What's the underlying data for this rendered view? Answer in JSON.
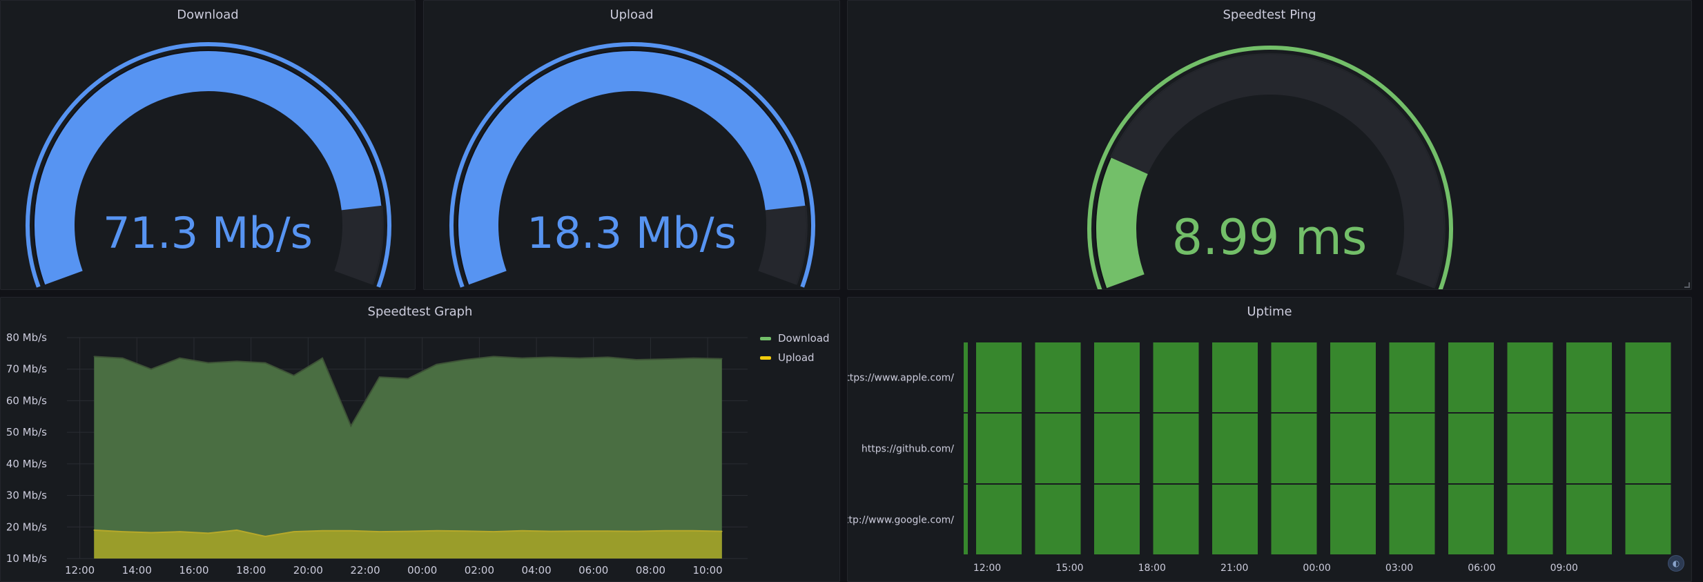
{
  "colors": {
    "blue": "#5794f2",
    "green": "#73bf69",
    "uptime_green": "#37872d",
    "yellow": "#f2cc0c",
    "track": "#25272d"
  },
  "gauges": [
    {
      "id": "download",
      "title": "Download",
      "value_text": "71.3 Mb/s",
      "fraction": 0.88,
      "color": "#5794f2"
    },
    {
      "id": "upload",
      "title": "Upload",
      "value_text": "18.3 Mb/s",
      "fraction": 0.88,
      "color": "#5794f2"
    },
    {
      "id": "ping",
      "title": "Speedtest Ping",
      "value_text": "8.99 ms",
      "fraction": 0.2,
      "color": "#73bf69"
    }
  ],
  "speedtest_graph": {
    "title": "Speedtest Graph",
    "legend": [
      {
        "name": "Download",
        "color": "#73bf69"
      },
      {
        "name": "Upload",
        "color": "#f2cc0c"
      }
    ]
  },
  "uptime": {
    "title": "Uptime",
    "rows": [
      "https://www.apple.com/",
      "https://github.com/",
      "http://www.google.com/"
    ],
    "x_ticks": [
      "12:00",
      "15:00",
      "18:00",
      "21:00",
      "00:00",
      "03:00",
      "06:00",
      "09:00"
    ]
  },
  "chart_data": {
    "type": "area",
    "title": "Speedtest Graph",
    "x_ticks": [
      "12:00",
      "14:00",
      "16:00",
      "18:00",
      "20:00",
      "22:00",
      "00:00",
      "02:00",
      "04:00",
      "06:00",
      "08:00",
      "10:00"
    ],
    "y_ticks": [
      "10 Mb/s",
      "20 Mb/s",
      "30 Mb/s",
      "40 Mb/s",
      "50 Mb/s",
      "60 Mb/s",
      "70 Mb/s",
      "80 Mb/s"
    ],
    "ylim": [
      10,
      80
    ],
    "x_hours": [
      12.5,
      13.5,
      14.5,
      15.5,
      16.5,
      17.5,
      18.5,
      19.5,
      20.5,
      21.5,
      22.5,
      23.5,
      24.5,
      25.5,
      26.5,
      27.5,
      28.5,
      29.5,
      30.5,
      31.5,
      32.5,
      33.5,
      34.5
    ],
    "series": [
      {
        "name": "Download",
        "color": "#73bf69",
        "values": [
          74,
          73.5,
          70,
          73.5,
          72,
          72.5,
          72,
          68,
          73.5,
          52,
          67.5,
          67,
          71.5,
          73,
          74,
          73.5,
          73.8,
          73.5,
          73.8,
          73,
          73.2,
          73.5,
          73.3
        ]
      },
      {
        "name": "Upload",
        "color": "#f2cc0c",
        "values": [
          19,
          18.5,
          18.2,
          18.5,
          18,
          19,
          17,
          18.5,
          18.8,
          18.8,
          18.5,
          18.6,
          18.8,
          18.7,
          18.5,
          18.8,
          18.6,
          18.7,
          18.7,
          18.6,
          18.8,
          18.8,
          18.6
        ]
      }
    ],
    "grid": true,
    "legend_position": "right"
  }
}
